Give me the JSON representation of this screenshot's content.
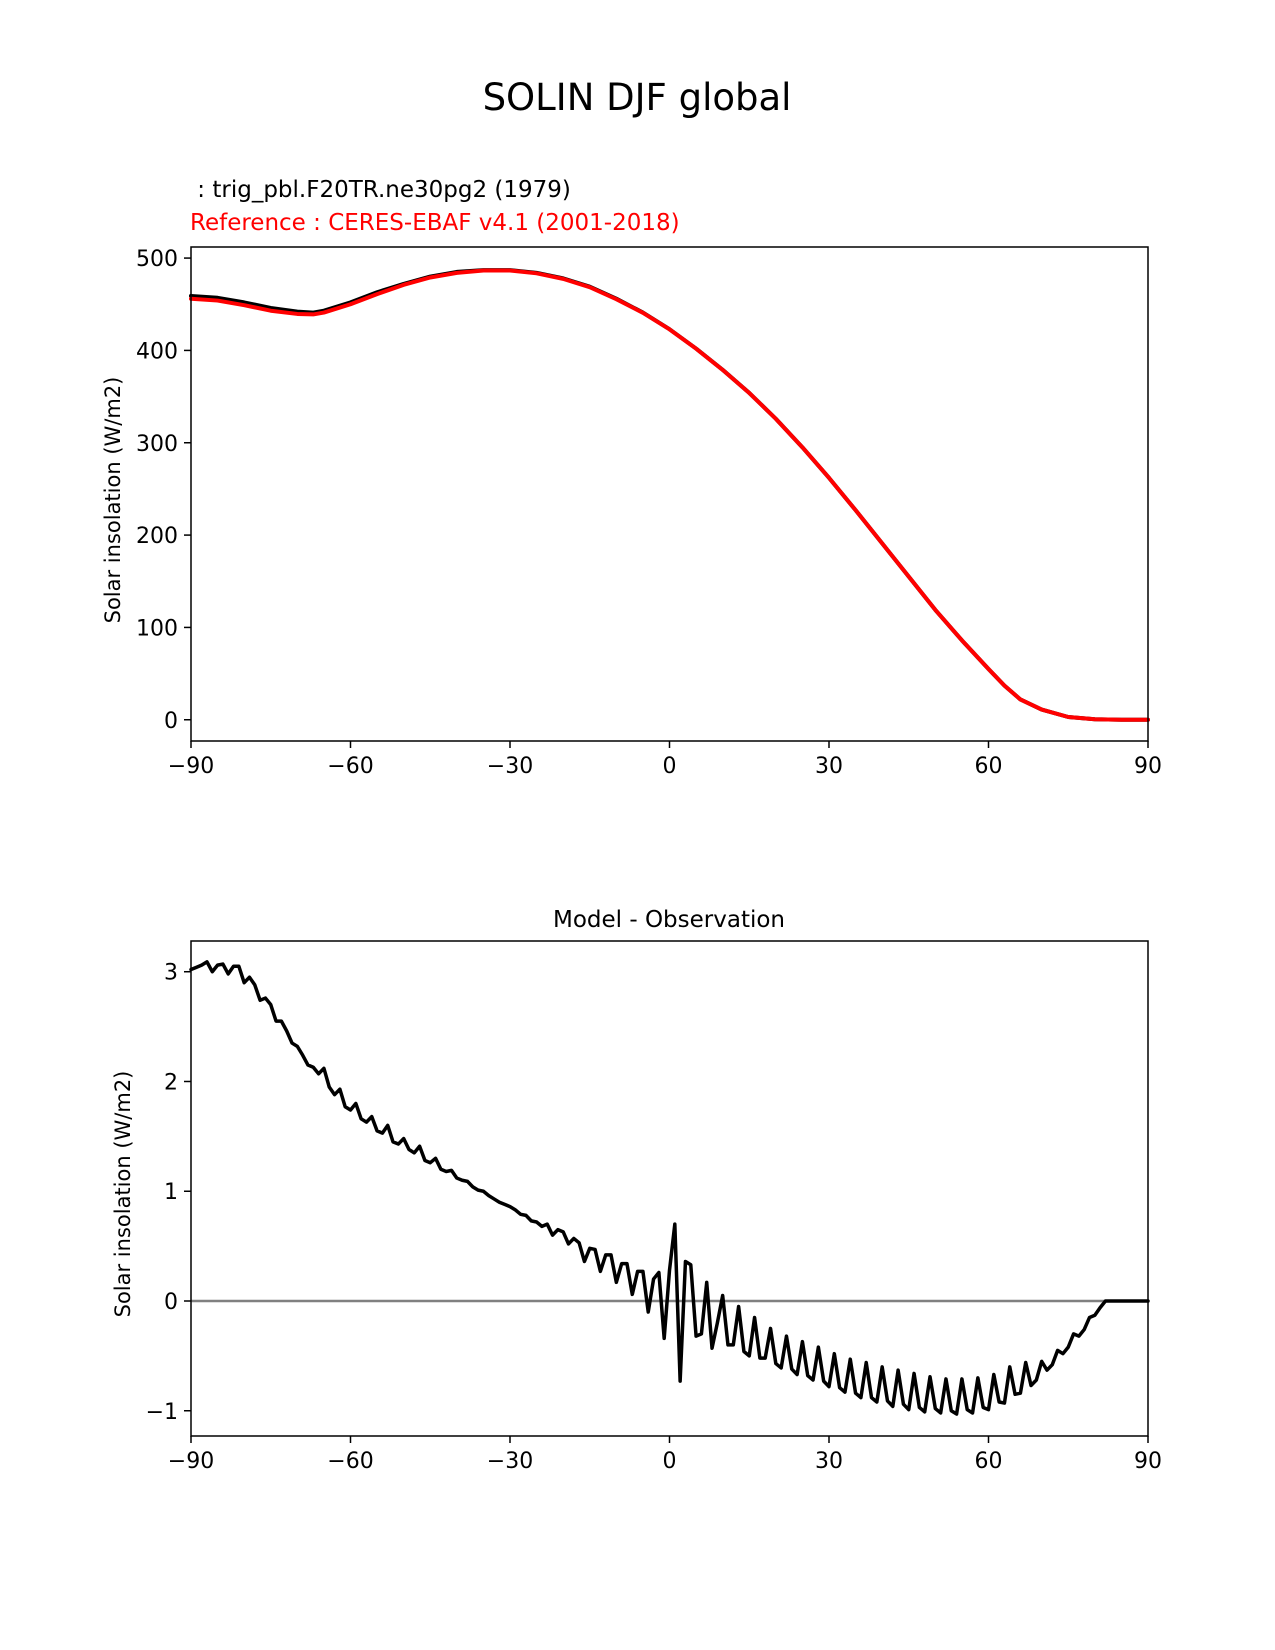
{
  "figure": {
    "suptitle": "SOLIN DJF global"
  },
  "chart_data": [
    {
      "type": "line",
      "title_test": " : trig_pbl.F20TR.ne30pg2 (1979)",
      "title_reference": "Reference : CERES-EBAF v4.1 (2001-2018)",
      "title_test_color": "#000000",
      "title_reference_color": "#ff0000",
      "xlabel": "",
      "ylabel": "Solar insolation (W/m2)",
      "xlim": [
        -90,
        90
      ],
      "ylim": [
        -23,
        512
      ],
      "xticks": [
        -90,
        -60,
        -30,
        0,
        30,
        60,
        90
      ],
      "xtick_labels": [
        "−90",
        "−60",
        "−30",
        "0",
        "30",
        "60",
        "90"
      ],
      "yticks": [
        0,
        100,
        200,
        300,
        400,
        500
      ],
      "ytick_labels": [
        "0",
        "100",
        "200",
        "300",
        "400",
        "500"
      ],
      "series": [
        {
          "name": "test",
          "color": "#000000",
          "x": [
            -90,
            -85,
            -80,
            -75,
            -70,
            -67,
            -65,
            -60,
            -55,
            -50,
            -45,
            -40,
            -35,
            -30,
            -25,
            -20,
            -15,
            -10,
            -5,
            0,
            5,
            10,
            15,
            20,
            25,
            30,
            35,
            40,
            45,
            50,
            55,
            60,
            63,
            66,
            70,
            75,
            80,
            85,
            90
          ],
          "values": [
            459,
            457,
            452,
            446,
            442,
            441,
            443,
            452,
            463,
            472,
            480,
            485,
            487,
            487,
            484,
            478,
            469,
            456,
            441,
            423,
            402,
            379,
            354,
            326,
            295,
            262,
            227,
            191,
            155,
            119,
            86,
            55,
            37,
            22,
            11,
            3,
            0.5,
            0,
            0
          ]
        },
        {
          "name": "reference",
          "color": "#ff0000",
          "x": [
            -90,
            -85,
            -80,
            -75,
            -70,
            -67,
            -65,
            -60,
            -55,
            -50,
            -45,
            -40,
            -35,
            -30,
            -25,
            -20,
            -15,
            -10,
            -5,
            0,
            5,
            10,
            15,
            20,
            25,
            30,
            35,
            40,
            45,
            50,
            55,
            60,
            63,
            66,
            70,
            75,
            80,
            85,
            90
          ],
          "values": [
            456,
            454,
            449,
            443,
            439.5,
            439,
            441,
            450,
            461,
            471,
            479,
            484,
            486.5,
            486.5,
            483.5,
            477.5,
            468.5,
            455.5,
            440.7,
            422.8,
            401.9,
            378.9,
            353.9,
            325.9,
            295,
            262,
            227,
            191,
            155,
            119,
            86,
            55,
            37,
            22,
            11,
            3,
            0.5,
            0,
            0
          ]
        }
      ]
    },
    {
      "type": "line",
      "title": "Model - Observation",
      "xlabel": "",
      "ylabel": "Solar insolation (W/m2)",
      "xlim": [
        -90,
        90
      ],
      "ylim": [
        -1.23,
        3.28
      ],
      "xticks": [
        -90,
        -60,
        -30,
        0,
        30,
        60,
        90
      ],
      "xtick_labels": [
        "−90",
        "−60",
        "−30",
        "0",
        "30",
        "60",
        "90"
      ],
      "yticks": [
        -1,
        0,
        1,
        2,
        3
      ],
      "ytick_labels": [
        "−1",
        "0",
        "1",
        "2",
        "3"
      ],
      "zero_line_color": "#808080",
      "series": [
        {
          "name": "difference",
          "color": "#000000",
          "x": [
            -90,
            -89,
            -88,
            -87,
            -86,
            -85,
            -84,
            -83,
            -82,
            -81,
            -80,
            -79,
            -78,
            -77,
            -76,
            -75,
            -74,
            -73,
            -72,
            -71,
            -70,
            -69,
            -68,
            -67,
            -66,
            -65,
            -64,
            -63,
            -62,
            -61,
            -60,
            -59,
            -58,
            -57,
            -56,
            -55,
            -54,
            -53,
            -52,
            -51,
            -50,
            -49,
            -48,
            -47,
            -46,
            -45,
            -44,
            -43,
            -42,
            -41,
            -40,
            -39,
            -38,
            -37,
            -36,
            -35,
            -34,
            -33,
            -32,
            -31,
            -30,
            -29,
            -28,
            -27,
            -26,
            -25,
            -24,
            -23,
            -22,
            -21,
            -20,
            -19,
            -18,
            -17,
            -16,
            -15,
            -14,
            -13,
            -12,
            -11,
            -10,
            -9,
            -8,
            -7,
            -6,
            -5,
            -4,
            -3,
            -2,
            -1,
            0,
            1,
            2,
            3,
            4,
            5,
            6,
            7,
            8,
            9,
            10,
            11,
            12,
            13,
            14,
            15,
            16,
            17,
            18,
            19,
            20,
            21,
            22,
            23,
            24,
            25,
            26,
            27,
            28,
            29,
            30,
            31,
            32,
            33,
            34,
            35,
            36,
            37,
            38,
            39,
            40,
            41,
            42,
            43,
            44,
            45,
            46,
            47,
            48,
            49,
            50,
            51,
            52,
            53,
            54,
            55,
            56,
            57,
            58,
            59,
            60,
            61,
            62,
            63,
            64,
            65,
            66,
            67,
            68,
            69,
            70,
            71,
            72,
            73,
            74,
            75,
            76,
            77,
            78,
            79,
            80,
            81,
            82,
            83,
            84,
            85,
            86,
            87,
            88,
            89,
            90
          ],
          "values": [
            3.02,
            3.04,
            3.06,
            3.09,
            3.0,
            3.06,
            3.07,
            2.98,
            3.05,
            3.05,
            2.9,
            2.95,
            2.88,
            2.74,
            2.76,
            2.7,
            2.55,
            2.55,
            2.46,
            2.35,
            2.32,
            2.24,
            2.15,
            2.13,
            2.07,
            2.12,
            1.95,
            1.88,
            1.93,
            1.77,
            1.74,
            1.8,
            1.66,
            1.63,
            1.68,
            1.55,
            1.53,
            1.6,
            1.45,
            1.43,
            1.48,
            1.38,
            1.35,
            1.41,
            1.28,
            1.26,
            1.3,
            1.2,
            1.18,
            1.19,
            1.12,
            1.1,
            1.09,
            1.04,
            1.01,
            1.0,
            0.96,
            0.93,
            0.9,
            0.88,
            0.86,
            0.83,
            0.79,
            0.78,
            0.73,
            0.72,
            0.68,
            0.7,
            0.6,
            0.65,
            0.63,
            0.52,
            0.57,
            0.53,
            0.36,
            0.48,
            0.47,
            0.27,
            0.42,
            0.42,
            0.17,
            0.34,
            0.34,
            0.06,
            0.27,
            0.27,
            -0.1,
            0.2,
            0.26,
            -0.34,
            0.28,
            0.7,
            -0.73,
            0.36,
            0.33,
            -0.32,
            -0.3,
            0.17,
            -0.43,
            -0.2,
            0.05,
            -0.4,
            -0.4,
            -0.05,
            -0.46,
            -0.5,
            -0.15,
            -0.52,
            -0.52,
            -0.25,
            -0.57,
            -0.61,
            -0.32,
            -0.62,
            -0.67,
            -0.37,
            -0.68,
            -0.72,
            -0.42,
            -0.73,
            -0.78,
            -0.48,
            -0.79,
            -0.83,
            -0.53,
            -0.84,
            -0.88,
            -0.56,
            -0.88,
            -0.92,
            -0.6,
            -0.91,
            -0.96,
            -0.63,
            -0.94,
            -0.99,
            -0.66,
            -0.97,
            -1.01,
            -0.69,
            -0.98,
            -1.02,
            -0.71,
            -1.0,
            -1.03,
            -0.71,
            -0.99,
            -1.02,
            -0.7,
            -0.97,
            -0.99,
            -0.67,
            -0.92,
            -0.93,
            -0.6,
            -0.85,
            -0.84,
            -0.56,
            -0.77,
            -0.72,
            -0.55,
            -0.63,
            -0.58,
            -0.45,
            -0.48,
            -0.42,
            -0.3,
            -0.32,
            -0.26,
            -0.15,
            -0.13,
            -0.06,
            0.0,
            0.0,
            0.0,
            0.0,
            0.0,
            0.0,
            0.0,
            0.0,
            0.0
          ]
        }
      ]
    }
  ]
}
